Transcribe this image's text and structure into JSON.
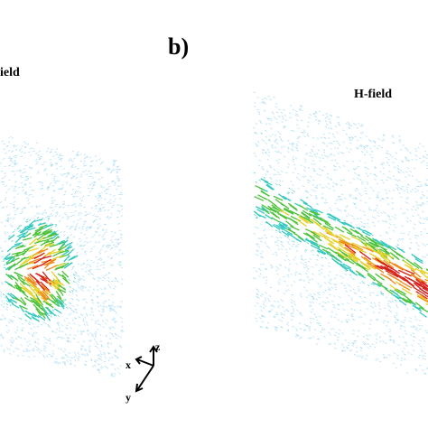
{
  "panel_label": "b)",
  "left_panel": {
    "title": "ield"
  },
  "right_panel": {
    "title": "H-field"
  },
  "axes_triad": {
    "z": "z",
    "x": "x",
    "y": "y"
  }
}
